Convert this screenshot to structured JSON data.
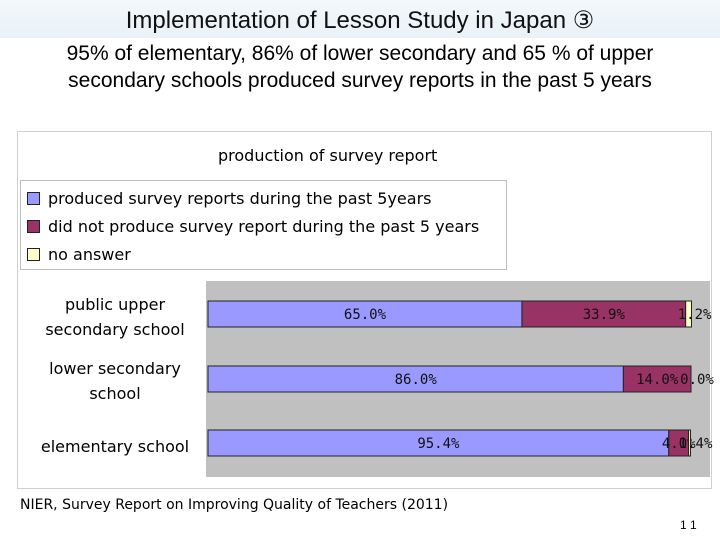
{
  "slide": {
    "title": "Implementation of Lesson Study in Japan ③",
    "subtitle": "95% of elementary, 86% of lower secondary and 65 % of upper secondary schools produced survey reports in the past 5 years",
    "source": "NIER, Survey Report on Improving Quality of Teachers (2011)",
    "page_number": "1 1"
  },
  "chart_data": {
    "type": "bar",
    "orientation": "horizontal",
    "stacked": true,
    "percent_stacked": true,
    "title": "production of survey report",
    "categories": [
      "public upper secondary school",
      "lower secondary school",
      "elementary school"
    ],
    "series": [
      {
        "name": "produced survey reports during the past 5years",
        "color": "#9999ff",
        "values": [
          65.0,
          86.0,
          95.4
        ],
        "labels": [
          "65.0%",
          "86.0%",
          "95.4%"
        ]
      },
      {
        "name": "did not produce survey report during the past 5 years",
        "color": "#993366",
        "values": [
          33.9,
          14.0,
          4.1
        ],
        "labels": [
          "33.9%",
          "14.0%",
          "4.1%"
        ]
      },
      {
        "name": "no answer",
        "color": "#ffffcc",
        "values": [
          1.2,
          0.0,
          0.4
        ],
        "labels": [
          "1.2%",
          "0.0%",
          "0.4%"
        ]
      }
    ],
    "xlim": [
      0,
      100
    ],
    "legend_position": "top-left",
    "grid": false
  }
}
